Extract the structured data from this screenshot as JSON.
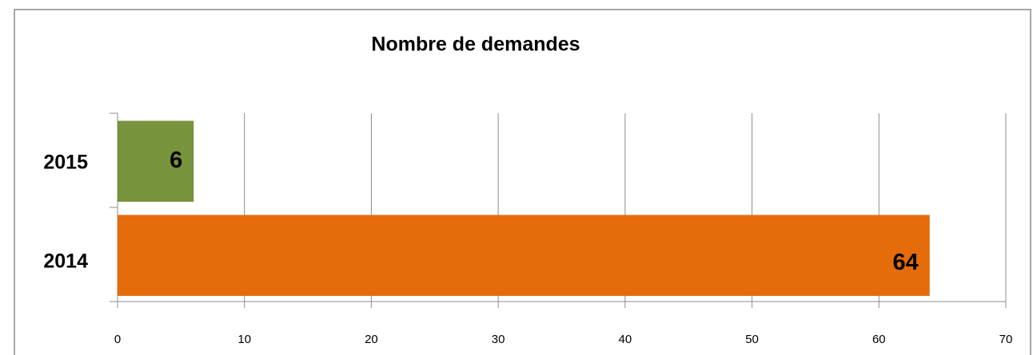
{
  "chart_data": {
    "type": "hbar",
    "title": "Nombre de demandes",
    "categories": [
      "2015",
      "2014"
    ],
    "values": [
      6,
      64
    ],
    "colors": [
      "#77933c",
      "#e46c0a"
    ],
    "xlim": [
      0,
      70
    ],
    "xticks": [
      0,
      10,
      20,
      30,
      40,
      50,
      60,
      70
    ],
    "grid": true
  }
}
